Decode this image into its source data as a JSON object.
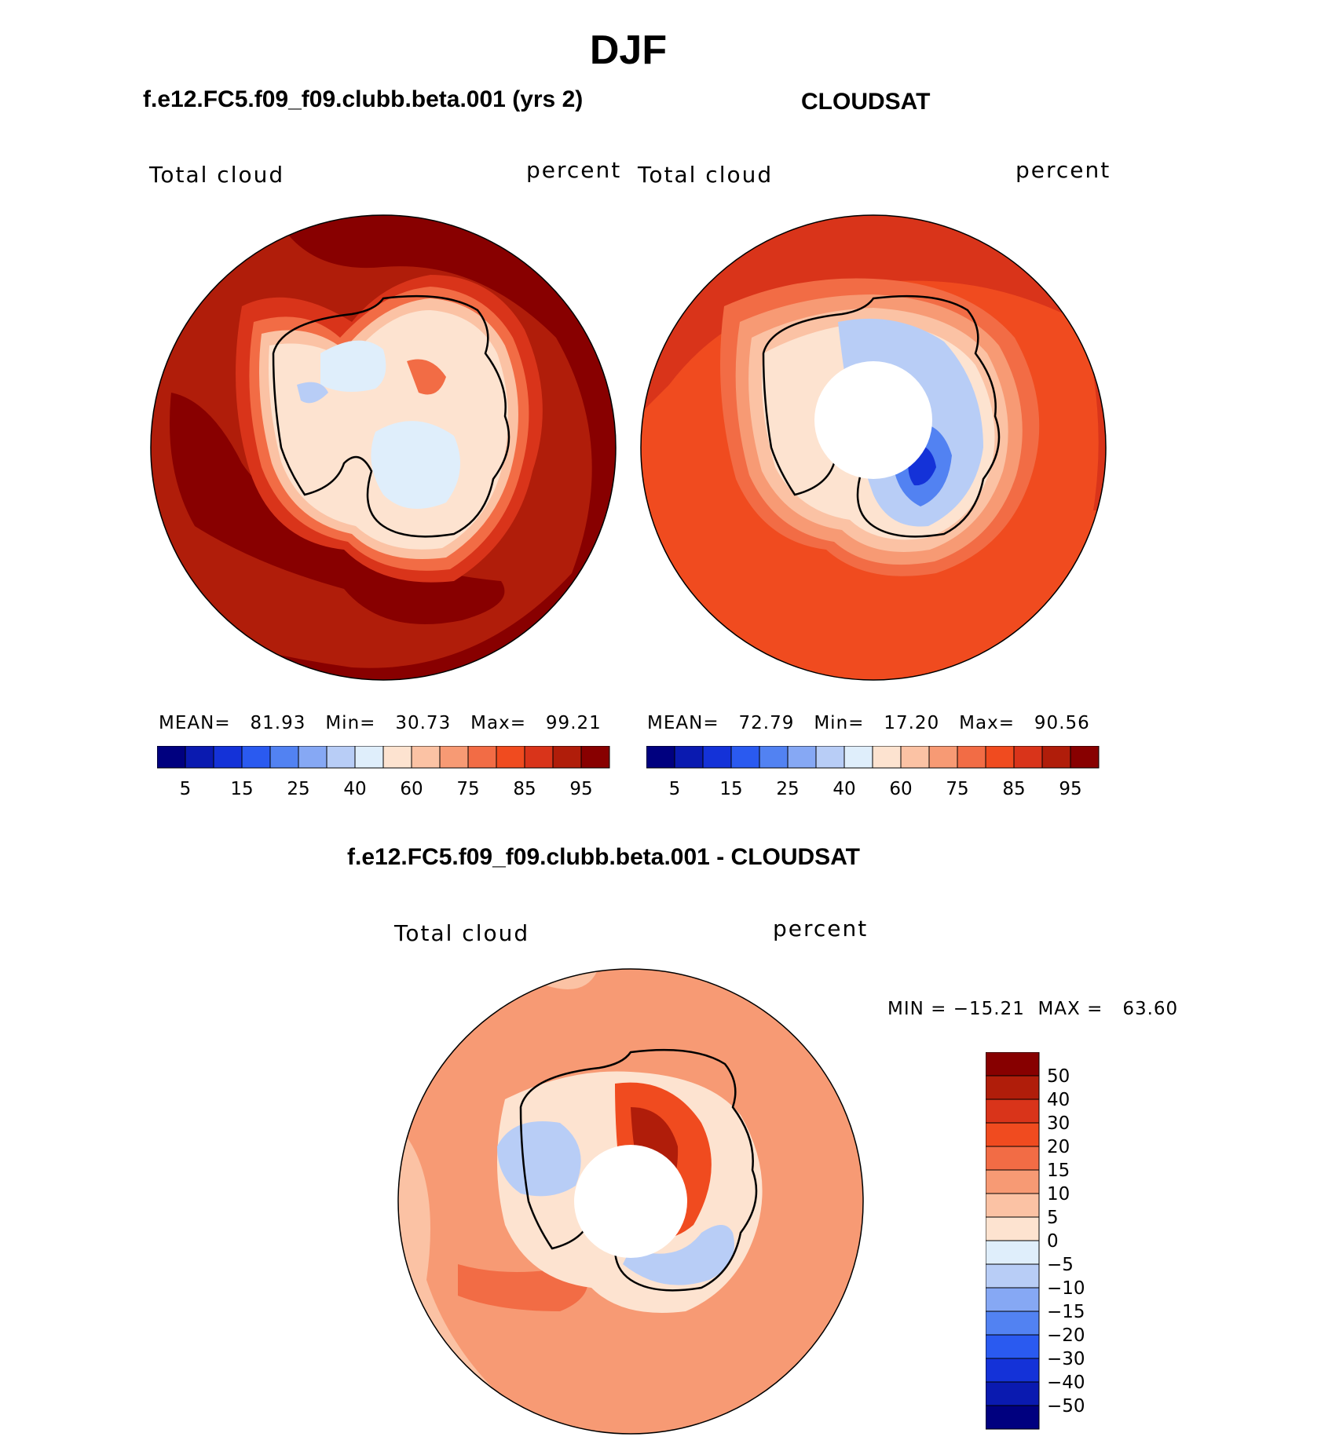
{
  "title": "DJF",
  "panels": [
    {
      "id": "model",
      "heading": "f.e12.FC5.f09_f09.clubb.beta.001 (yrs 2)",
      "left_label": "Total cloud",
      "right_label": "percent",
      "stats": {
        "mean_label": "MEAN=",
        "mean": "81.93",
        "min_label": "Min=",
        "min": "30.73",
        "max_label": "Max=",
        "max": "99.21"
      }
    },
    {
      "id": "obs",
      "heading": "CLOUDSAT",
      "left_label": "Total cloud",
      "right_label": "percent",
      "stats": {
        "mean_label": "MEAN=",
        "mean": "72.79",
        "min_label": "Min=",
        "min": "17.20",
        "max_label": "Max=",
        "max": "90.56"
      }
    },
    {
      "id": "diff",
      "heading": "f.e12.FC5.f09_f09.clubb.beta.001 - CLOUDSAT",
      "left_label": "Total cloud",
      "right_label": "percent",
      "minmax": "MIN = −15.21  MAX =   63.60"
    }
  ],
  "colorbar_abs": {
    "colors": [
      "#00007f",
      "#0a1ab0",
      "#1432d8",
      "#2a5af0",
      "#5282f2",
      "#86a8f4",
      "#b8cdf6",
      "#dfeefb",
      "#fde3d0",
      "#fbc2a4",
      "#f79a74",
      "#f26c45",
      "#f04b1f",
      "#d9341a",
      "#b01d0a",
      "#880000"
    ],
    "tick_labels": [
      "5",
      "15",
      "25",
      "40",
      "60",
      "75",
      "85",
      "95"
    ]
  },
  "colorbar_diff": {
    "colors": [
      "#870000",
      "#b01d0a",
      "#d9341a",
      "#f04b1f",
      "#f26c45",
      "#f79a74",
      "#fbc2a4",
      "#fde3d0",
      "#dfeefb",
      "#b8cdf6",
      "#86a8f4",
      "#5282f2",
      "#2a5af0",
      "#1432d8",
      "#0a1ab0",
      "#00007f"
    ],
    "tick_labels": [
      "50",
      "40",
      "30",
      "20",
      "15",
      "10",
      "5",
      "0",
      "−5",
      "−10",
      "−15",
      "−20",
      "−30",
      "−40",
      "−50"
    ]
  }
}
